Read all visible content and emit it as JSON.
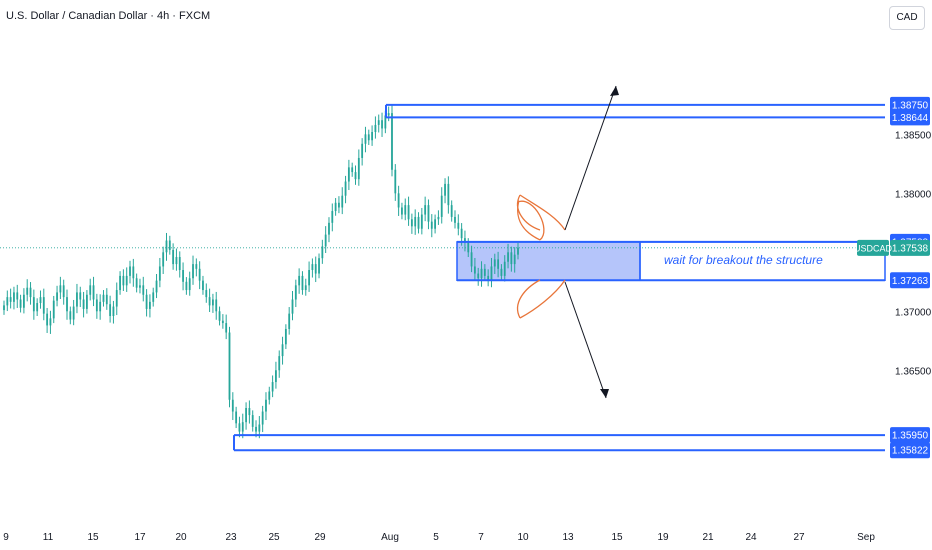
{
  "header": {
    "title": "U.S. Dollar / Canadian Dollar · 4h · FXCM",
    "currency": "CAD"
  },
  "colors": {
    "candle": "#26a69a",
    "level_line": "#2962ff",
    "zone_fill": "#5b7ef5",
    "curve": "#e8753a",
    "arrow": "#131722",
    "annotation_text": "#2962ff",
    "price_tag_bg": "#2962ff",
    "current_tag_bg": "#26a69a"
  },
  "chart_data": {
    "type": "candlestick",
    "symbol": "USDCAD",
    "timeframe": "4h",
    "y_ticks": [
      "1.38500",
      "1.38000",
      "1.37000",
      "1.36500"
    ],
    "y_range": [
      1.354,
      1.393
    ],
    "x_ticks": [
      "9",
      "11",
      "15",
      "17",
      "20",
      "23",
      "25",
      "29",
      "Aug",
      "5",
      "7",
      "10",
      "13",
      "15",
      "19",
      "21",
      "24",
      "27",
      "Sep"
    ],
    "price_levels": [
      {
        "label": "1.38750",
        "value": 1.3875
      },
      {
        "label": "1.38644",
        "value": 1.38644
      },
      {
        "label": "1.37588",
        "value": 1.37588
      },
      {
        "label": "1.37263",
        "value": 1.37263
      },
      {
        "label": "1.35950",
        "value": 1.3595
      },
      {
        "label": "1.35822",
        "value": 1.35822
      }
    ],
    "current_price": {
      "symbol": "USDCAD",
      "label": "1.37538",
      "value": 1.37538
    },
    "zone": {
      "top": 1.37588,
      "bottom": 1.37263
    },
    "annotation": "wait for breakout the structure",
    "closes": [
      1.3705,
      1.3712,
      1.3708,
      1.3716,
      1.371,
      1.3703,
      1.3714,
      1.372,
      1.3712,
      1.37,
      1.3707,
      1.3712,
      1.3698,
      1.3688,
      1.3694,
      1.3709,
      1.3716,
      1.3722,
      1.3712,
      1.37,
      1.3693,
      1.3704,
      1.3716,
      1.371,
      1.3702,
      1.3714,
      1.3722,
      1.371,
      1.37,
      1.3708,
      1.3714,
      1.3706,
      1.3696,
      1.3704,
      1.3718,
      1.373,
      1.3722,
      1.373,
      1.3738,
      1.3728,
      1.372,
      1.3722,
      1.3714,
      1.3702,
      1.3708,
      1.3716,
      1.3726,
      1.3738,
      1.375,
      1.376,
      1.3752,
      1.374,
      1.3746,
      1.3735,
      1.3725,
      1.3718,
      1.3728,
      1.374,
      1.3736,
      1.3726,
      1.3718,
      1.3712,
      1.3705,
      1.371,
      1.37,
      1.3692,
      1.369,
      1.3682,
      1.3625,
      1.3615,
      1.3605,
      1.3598,
      1.3606,
      1.3618,
      1.3612,
      1.3602,
      1.3598,
      1.3604,
      1.3615,
      1.3625,
      1.3632,
      1.364,
      1.365,
      1.3662,
      1.3672,
      1.3685,
      1.3698,
      1.371,
      1.3722,
      1.373,
      1.3718,
      1.3722,
      1.3735,
      1.374,
      1.3732,
      1.3745,
      1.3755,
      1.3765,
      1.3775,
      1.3785,
      1.3792,
      1.3788,
      1.3798,
      1.381,
      1.3822,
      1.3818,
      1.3812,
      1.383,
      1.3842,
      1.385,
      1.3845,
      1.3852,
      1.3858,
      1.3862,
      1.3855,
      1.3866,
      1.3868,
      1.382,
      1.38,
      1.3788,
      1.3782,
      1.379,
      1.3778,
      1.3772,
      1.378,
      1.377,
      1.3782,
      1.379,
      1.3776,
      1.377,
      1.3778,
      1.378,
      1.3798,
      1.3808,
      1.379,
      1.378,
      1.3775,
      1.377,
      1.3762,
      1.3758,
      1.375,
      1.3738,
      1.3732,
      1.3728,
      1.3736,
      1.373,
      1.3726,
      1.3738,
      1.3744,
      1.3736,
      1.373,
      1.3742,
      1.375,
      1.374,
      1.3748,
      1.3754
    ]
  }
}
